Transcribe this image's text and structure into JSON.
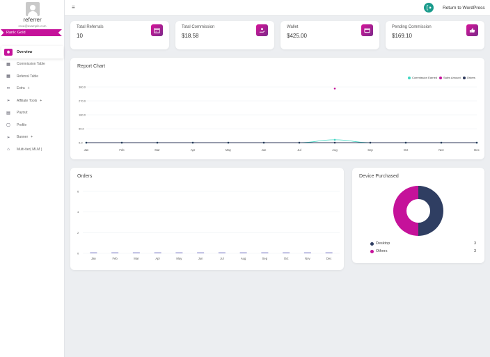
{
  "user": {
    "name": "referrer",
    "email": "rose@example.com",
    "rank_label": "Rank: Gold"
  },
  "sidebar": {
    "items": [
      {
        "label": "Overview",
        "icon": "eye-icon",
        "active": true,
        "expandable": false
      },
      {
        "label": "Commission Table",
        "icon": "table-icon",
        "active": false,
        "expandable": false
      },
      {
        "label": "Referral Table",
        "icon": "table-icon",
        "active": false,
        "expandable": false
      },
      {
        "label": "Extra",
        "icon": "link-icon",
        "active": false,
        "expandable": true
      },
      {
        "label": "Affiliate Tools",
        "icon": "send-icon",
        "active": false,
        "expandable": true
      },
      {
        "label": "Payout",
        "icon": "payout-icon",
        "active": false,
        "expandable": false
      },
      {
        "label": "Profile",
        "icon": "profile-icon",
        "active": false,
        "expandable": false
      },
      {
        "label": "Banner",
        "icon": "send-icon",
        "active": false,
        "expandable": true
      },
      {
        "label": "Multi-tier( MLM )",
        "icon": "inbox-icon",
        "active": false,
        "expandable": false
      }
    ],
    "plus": "+"
  },
  "topbar": {
    "menu_icon": "≡",
    "return_label": "Return to WordPress"
  },
  "stats": [
    {
      "label": "Total Referrals",
      "value": "10",
      "icon": "calendar-icon"
    },
    {
      "label": "Total Commission",
      "value": "$18.58",
      "icon": "hand-coin-icon"
    },
    {
      "label": "Wallet",
      "value": "$425.00",
      "icon": "wallet-icon"
    },
    {
      "label": "Pending Commission",
      "value": "$169.10",
      "icon": "thumbs-up-icon"
    }
  ],
  "report": {
    "title": "Report Chart",
    "legend": [
      {
        "name": "Commission Earned",
        "color": "#3ed6c2"
      },
      {
        "name": "Sales Amount",
        "color": "#c5129a"
      },
      {
        "name": "Orders",
        "color": "#2c3759"
      }
    ]
  },
  "orders": {
    "title": "Orders"
  },
  "device": {
    "title": "Device Purchased",
    "items": [
      {
        "label": "Desktop",
        "value": "3",
        "color": "#2f3e62"
      },
      {
        "label": "Others",
        "value": "3",
        "color": "#c5129a"
      }
    ]
  },
  "colors": {
    "accent": "#c5129a",
    "teal": "#1a9b8c",
    "navy": "#2c3759"
  },
  "chart_data": [
    {
      "type": "line",
      "title": "Report Chart",
      "categories": [
        "Jan",
        "Feb",
        "Mar",
        "Apr",
        "May",
        "Jun",
        "Jul",
        "Aug",
        "Sep",
        "Oct",
        "Nov",
        "Dec"
      ],
      "y_tick_labels": [
        "0.0",
        "90.0",
        "180.0",
        "270.0",
        "360.0"
      ],
      "ylim": [
        0,
        360
      ],
      "series": [
        {
          "name": "Commission Earned",
          "color": "#3ed6c2",
          "values": [
            0,
            0,
            0,
            0,
            0,
            0,
            0,
            18.58,
            0,
            0,
            0,
            0
          ]
        },
        {
          "name": "Sales Amount",
          "color": "#c5129a",
          "values": [
            null,
            null,
            null,
            null,
            null,
            null,
            null,
            350,
            null,
            null,
            null,
            null
          ]
        },
        {
          "name": "Orders",
          "color": "#2c3759",
          "values": [
            0,
            0,
            0,
            0,
            0,
            0,
            0,
            0,
            0,
            0,
            0,
            0
          ]
        }
      ],
      "grid": true,
      "legend": "top-right"
    },
    {
      "type": "bar",
      "title": "Orders",
      "categories": [
        "Jan",
        "Feb",
        "Mar",
        "Apr",
        "May",
        "Jun",
        "Jul",
        "Aug",
        "Sep",
        "Oct",
        "Nov",
        "Dec"
      ],
      "y_tick_labels": [
        "0",
        "2",
        "4",
        "6"
      ],
      "ylim": [
        0,
        6
      ],
      "values": [
        0,
        0,
        0,
        0,
        0,
        0,
        0,
        0,
        0,
        0,
        0,
        0
      ],
      "color": "#7f7fc8",
      "grid": true
    },
    {
      "type": "pie",
      "title": "Device Purchased",
      "labels": [
        "Desktop",
        "Others"
      ],
      "values": [
        3,
        3
      ],
      "colors": [
        "#2f3e62",
        "#c5129a"
      ],
      "donut": true
    }
  ]
}
